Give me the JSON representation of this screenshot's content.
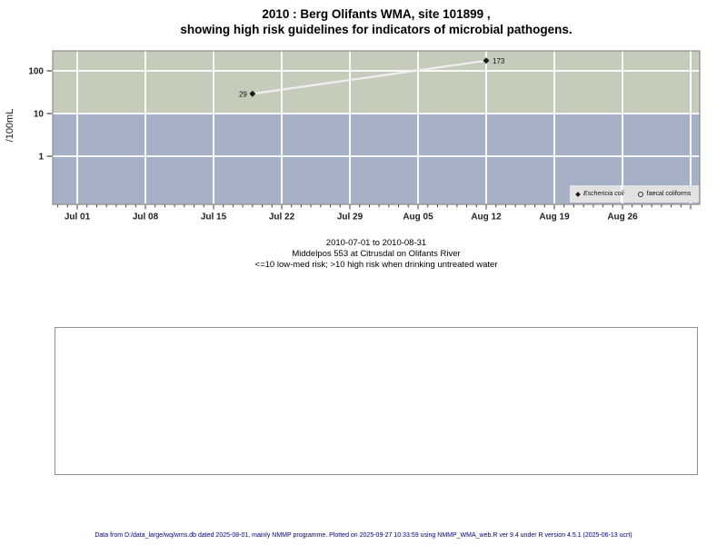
{
  "title": {
    "line1": "2010 : Berg Olifants WMA, site 101899 ,",
    "line2": "showing high risk guidelines for indicators of microbial pathogens."
  },
  "chart_data": {
    "type": "line",
    "title": "2010 : Berg Olifants WMA, site 101899 , showing high risk guidelines for indicators of microbial pathogens.",
    "ylabel": "/100mL",
    "y_scale": "log",
    "ylim": [
      0.074,
      293
    ],
    "y_ticks": [
      1,
      10,
      100
    ],
    "x_origin": "2010-07-01",
    "x_range": [
      "2010-06-29",
      "2010-09-03"
    ],
    "x_tick_labels": [
      "Jul 01",
      "Jul 08",
      "Jul 15",
      "Jul 22",
      "Jul 29",
      "Aug 05",
      "Aug 12",
      "Aug 19",
      "Aug 26"
    ],
    "grid": true,
    "legend_position": "bottom-right-inside",
    "risk_threshold_per_100mL": 10,
    "regions": [
      {
        "name": "high risk (>10)",
        "y_from": 10,
        "y_to": 293,
        "color": "#c5ccba"
      },
      {
        "name": "low-med risk (<=10)",
        "y_from": 0.074,
        "y_to": 10,
        "color": "#a6b1c8"
      }
    ],
    "line_color": "#f0eef0",
    "series": [
      {
        "name": "Eschericia coli",
        "marker": "filled-diamond",
        "points": [
          {
            "date": "2010-07-19",
            "value": 29,
            "label": "29",
            "label_side": "left"
          },
          {
            "date": "2010-08-12",
            "value": 173,
            "label": "173",
            "label_side": "right"
          }
        ]
      },
      {
        "name": "faecal coliforms",
        "marker": "open-circle",
        "points": []
      }
    ]
  },
  "legend": {
    "items": [
      {
        "label": "Eschericia coli",
        "marker": "filled-diamond"
      },
      {
        "label": "faecal coliforms",
        "marker": "open-circle"
      }
    ]
  },
  "caption": {
    "lines": [
      "2010-07-01 to 2010-08-31",
      "Middelpos 553 at Citrusdal on Olifants River",
      "<=10 low-med risk; >10 high risk when drinking untreated water"
    ]
  },
  "footer": {
    "text": "Data from D:/data_large/wq/wms.db dated 2025-08-01, mainly NMMP programme. Plotted on 2025-09-27 10:33:59 using NMMP_WMA_web.R ver 9.4 under R version 4.5.1 (2025-06-13 ucrt)"
  }
}
